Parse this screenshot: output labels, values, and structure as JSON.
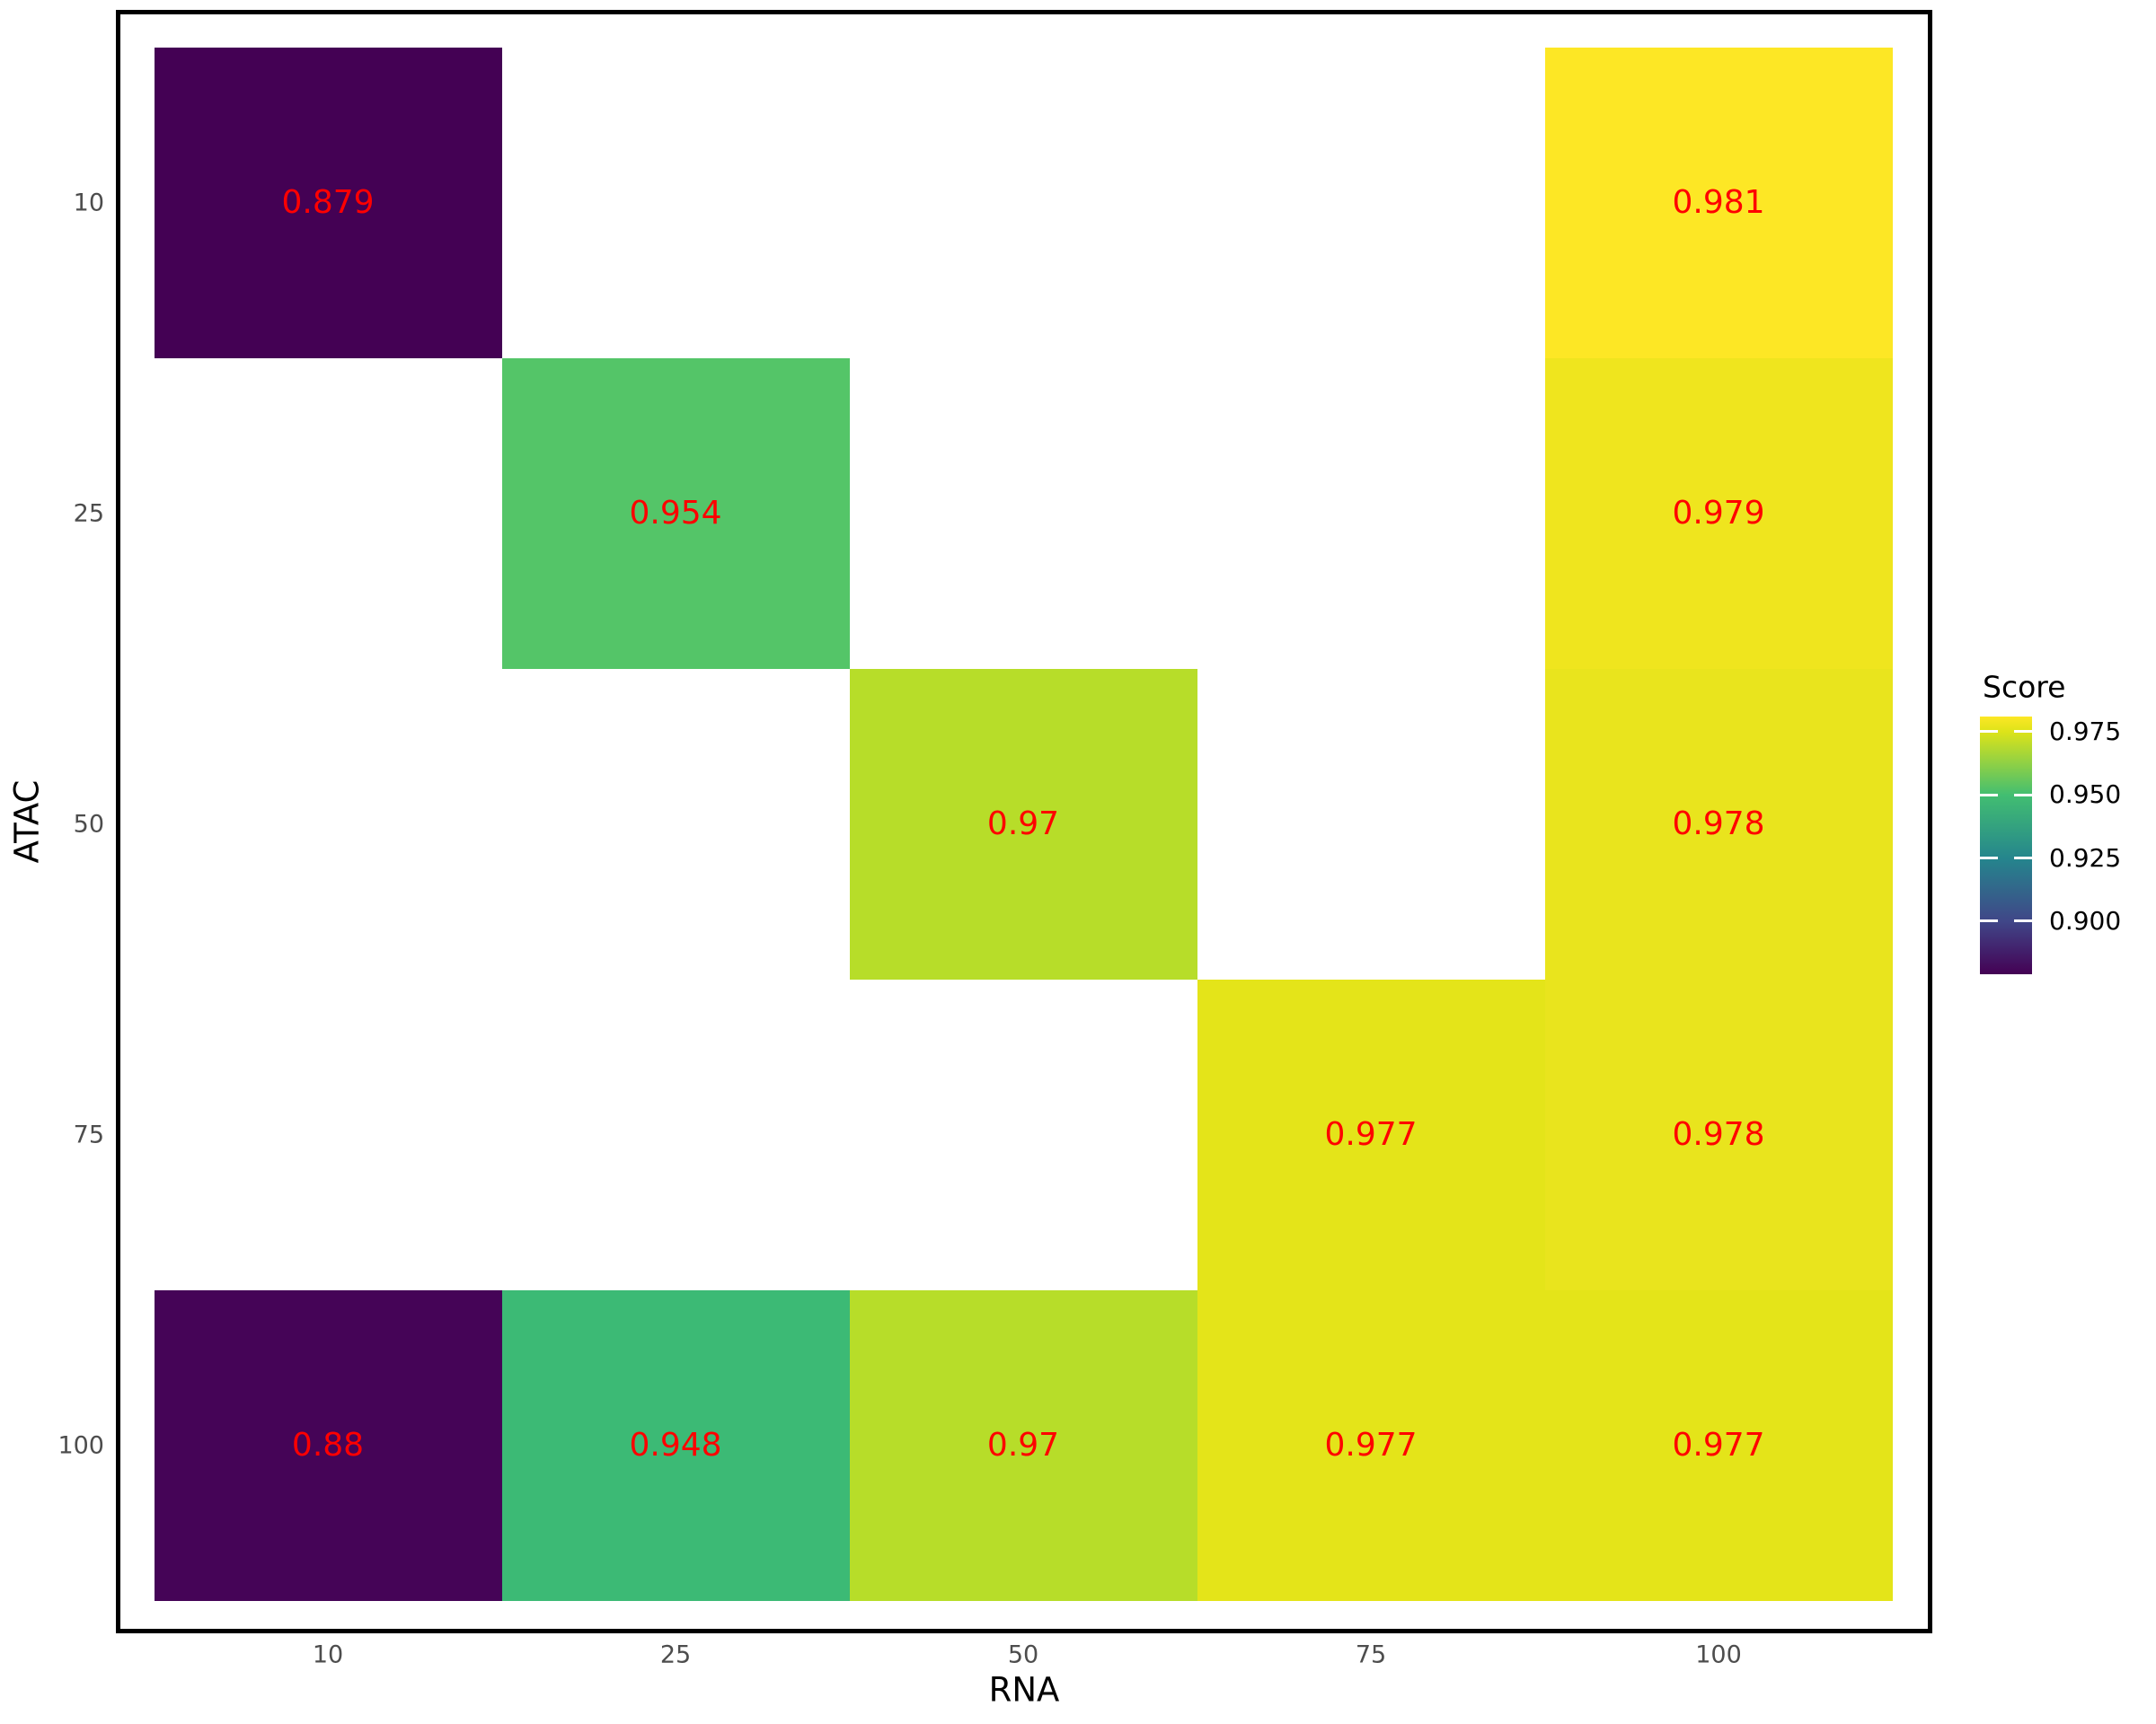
{
  "chart_data": {
    "type": "heatmap",
    "xlabel": "RNA",
    "ylabel": "ATAC",
    "x_categories": [
      "10",
      "25",
      "50",
      "75",
      "100"
    ],
    "y_categories": [
      "10",
      "25",
      "50",
      "75",
      "100"
    ],
    "value_label_color": "#ff0000",
    "tick_label_color": "#4d4d4d",
    "panel_border_color": "#000000",
    "background_color": "#ffffff",
    "colormap": "viridis",
    "vmin": 0.879,
    "vmax": 0.981,
    "cells": [
      {
        "rna": "10",
        "atac": "10",
        "value": "0.879",
        "color": "#440154"
      },
      {
        "rna": "100",
        "atac": "10",
        "value": "0.981",
        "color": "#fde725"
      },
      {
        "rna": "25",
        "atac": "25",
        "value": "0.954",
        "color": "#54c568"
      },
      {
        "rna": "100",
        "atac": "25",
        "value": "0.979",
        "color": "#efe51e"
      },
      {
        "rna": "50",
        "atac": "50",
        "value": "0.97",
        "color": "#b7dd29"
      },
      {
        "rna": "100",
        "atac": "50",
        "value": "0.978",
        "color": "#e9e41d"
      },
      {
        "rna": "75",
        "atac": "75",
        "value": "0.977",
        "color": "#e4e419"
      },
      {
        "rna": "100",
        "atac": "75",
        "value": "0.978",
        "color": "#e9e41d"
      },
      {
        "rna": "10",
        "atac": "100",
        "value": "0.88",
        "color": "#450457"
      },
      {
        "rna": "25",
        "atac": "100",
        "value": "0.948",
        "color": "#3cba75"
      },
      {
        "rna": "50",
        "atac": "100",
        "value": "0.97",
        "color": "#b7dd29"
      },
      {
        "rna": "75",
        "atac": "100",
        "value": "0.977",
        "color": "#e4e419"
      },
      {
        "rna": "100",
        "atac": "100",
        "value": "0.977",
        "color": "#e4e419"
      }
    ],
    "legend": {
      "title": "Score",
      "tick_labels": [
        "0.975",
        "0.950",
        "0.925",
        "0.900"
      ],
      "tick_values": [
        0.975,
        0.95,
        0.925,
        0.9
      ],
      "position": "right",
      "gradient_stops": [
        {
          "pct": 0,
          "color": "#fde725"
        },
        {
          "pct": 6,
          "color": "#dce319"
        },
        {
          "pct": 30.4,
          "color": "#42be71"
        },
        {
          "pct": 55.2,
          "color": "#25858d"
        },
        {
          "pct": 79.6,
          "color": "#404688"
        },
        {
          "pct": 100,
          "color": "#440154"
        }
      ]
    }
  }
}
